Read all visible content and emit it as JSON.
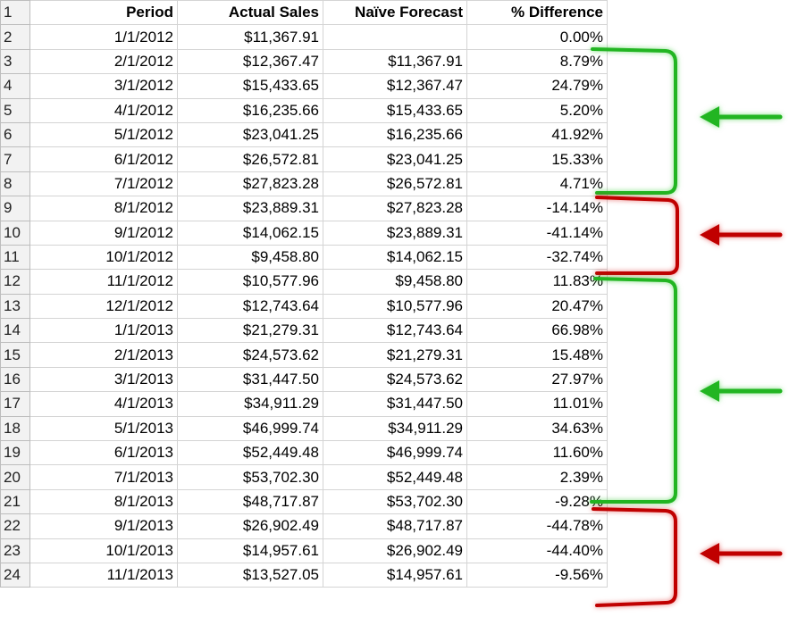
{
  "headers": [
    "Period",
    "Actual Sales",
    "Naïve Forecast",
    "% Difference"
  ],
  "rows": [
    {
      "n": "2",
      "period": "1/1/2012",
      "actual": "$11,367.91",
      "forecast": "",
      "diff": "0.00%"
    },
    {
      "n": "3",
      "period": "2/1/2012",
      "actual": "$12,367.47",
      "forecast": "$11,367.91",
      "diff": "8.79%"
    },
    {
      "n": "4",
      "period": "3/1/2012",
      "actual": "$15,433.65",
      "forecast": "$12,367.47",
      "diff": "24.79%"
    },
    {
      "n": "5",
      "period": "4/1/2012",
      "actual": "$16,235.66",
      "forecast": "$15,433.65",
      "diff": "5.20%"
    },
    {
      "n": "6",
      "period": "5/1/2012",
      "actual": "$23,041.25",
      "forecast": "$16,235.66",
      "diff": "41.92%"
    },
    {
      "n": "7",
      "period": "6/1/2012",
      "actual": "$26,572.81",
      "forecast": "$23,041.25",
      "diff": "15.33%"
    },
    {
      "n": "8",
      "period": "7/1/2012",
      "actual": "$27,823.28",
      "forecast": "$26,572.81",
      "diff": "4.71%"
    },
    {
      "n": "9",
      "period": "8/1/2012",
      "actual": "$23,889.31",
      "forecast": "$27,823.28",
      "diff": "-14.14%"
    },
    {
      "n": "10",
      "period": "9/1/2012",
      "actual": "$14,062.15",
      "forecast": "$23,889.31",
      "diff": "-41.14%"
    },
    {
      "n": "11",
      "period": "10/1/2012",
      "actual": "$9,458.80",
      "forecast": "$14,062.15",
      "diff": "-32.74%"
    },
    {
      "n": "12",
      "period": "11/1/2012",
      "actual": "$10,577.96",
      "forecast": "$9,458.80",
      "diff": "11.83%"
    },
    {
      "n": "13",
      "period": "12/1/2012",
      "actual": "$12,743.64",
      "forecast": "$10,577.96",
      "diff": "20.47%"
    },
    {
      "n": "14",
      "period": "1/1/2013",
      "actual": "$21,279.31",
      "forecast": "$12,743.64",
      "diff": "66.98%"
    },
    {
      "n": "15",
      "period": "2/1/2013",
      "actual": "$24,573.62",
      "forecast": "$21,279.31",
      "diff": "15.48%"
    },
    {
      "n": "16",
      "period": "3/1/2013",
      "actual": "$31,447.50",
      "forecast": "$24,573.62",
      "diff": "27.97%"
    },
    {
      "n": "17",
      "period": "4/1/2013",
      "actual": "$34,911.29",
      "forecast": "$31,447.50",
      "diff": "11.01%"
    },
    {
      "n": "18",
      "period": "5/1/2013",
      "actual": "$46,999.74",
      "forecast": "$34,911.29",
      "diff": "34.63%"
    },
    {
      "n": "19",
      "period": "6/1/2013",
      "actual": "$52,449.48",
      "forecast": "$46,999.74",
      "diff": "11.60%"
    },
    {
      "n": "20",
      "period": "7/1/2013",
      "actual": "$53,702.30",
      "forecast": "$52,449.48",
      "diff": "2.39%"
    },
    {
      "n": "21",
      "period": "8/1/2013",
      "actual": "$48,717.87",
      "forecast": "$53,702.30",
      "diff": "-9.28%"
    },
    {
      "n": "22",
      "period": "9/1/2013",
      "actual": "$26,902.49",
      "forecast": "$48,717.87",
      "diff": "-44.78%"
    },
    {
      "n": "23",
      "period": "10/1/2013",
      "actual": "$14,957.61",
      "forecast": "$26,902.49",
      "diff": "-44.40%"
    },
    {
      "n": "24",
      "period": "11/1/2013",
      "actual": "$13,527.05",
      "forecast": "$14,957.61",
      "diff": "-9.56%"
    }
  ],
  "annotations": {
    "growth_color": "#22b522",
    "decline_color": "#c00000",
    "arrows": [
      {
        "trend": "growth",
        "icon": "green-arrow-left-icon"
      },
      {
        "trend": "decline",
        "icon": "red-arrow-left-icon"
      },
      {
        "trend": "growth",
        "icon": "green-arrow-left-icon"
      },
      {
        "trend": "decline",
        "icon": "red-arrow-left-icon"
      }
    ]
  }
}
